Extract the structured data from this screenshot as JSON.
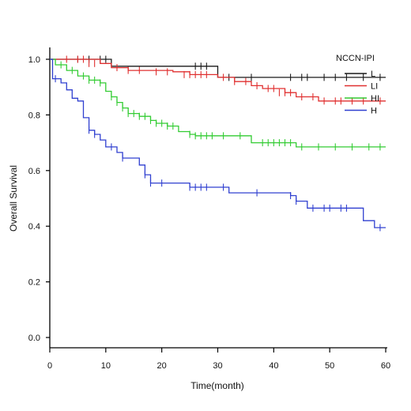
{
  "chart_data": {
    "type": "line",
    "subtype": "kaplan-meier step curves with censor marks",
    "xlabel": "Time(month)",
    "ylabel": "Overall Survival",
    "xlim": [
      0,
      60
    ],
    "ylim": [
      0,
      1.0
    ],
    "x_ticks": [
      "0",
      "10",
      "20",
      "30",
      "40",
      "50",
      "60"
    ],
    "y_ticks": [
      "0.0",
      "0.2",
      "0.4",
      "0.6",
      "0.8",
      "1.0"
    ],
    "grid": false,
    "legend": {
      "title": "NCCN-IPI",
      "position": "top-right",
      "entries": [
        "L",
        "LI",
        "HI",
        "H"
      ]
    },
    "series": [
      {
        "name": "L",
        "color": "#1a1a1a",
        "steps": [
          [
            0,
            1.0
          ],
          [
            11,
            0.975
          ],
          [
            30,
            0.935
          ],
          [
            60,
            0.935
          ]
        ],
        "censors": [
          [
            5,
            1.0
          ],
          [
            7,
            1.0
          ],
          [
            9,
            1.0
          ],
          [
            10,
            1.0
          ],
          [
            26,
            0.975
          ],
          [
            27,
            0.975
          ],
          [
            28,
            0.975
          ],
          [
            32,
            0.935
          ],
          [
            36,
            0.935
          ],
          [
            43,
            0.935
          ],
          [
            45,
            0.935
          ],
          [
            46,
            0.935
          ],
          [
            49,
            0.935
          ],
          [
            51,
            0.935
          ],
          [
            53,
            0.935
          ],
          [
            56,
            0.935
          ],
          [
            59,
            0.935
          ]
        ]
      },
      {
        "name": "LI",
        "color": "#e03030",
        "steps": [
          [
            0,
            1.0
          ],
          [
            9,
            0.985
          ],
          [
            11,
            0.97
          ],
          [
            14,
            0.96
          ],
          [
            22,
            0.955
          ],
          [
            25,
            0.945
          ],
          [
            30,
            0.935
          ],
          [
            33,
            0.92
          ],
          [
            36,
            0.905
          ],
          [
            38,
            0.895
          ],
          [
            42,
            0.88
          ],
          [
            44,
            0.865
          ],
          [
            48,
            0.85
          ],
          [
            60,
            0.85
          ]
        ],
        "censors": [
          [
            3,
            1.0
          ],
          [
            5,
            1.0
          ],
          [
            6,
            1.0
          ],
          [
            7,
            0.985
          ],
          [
            8,
            0.985
          ],
          [
            12,
            0.97
          ],
          [
            14,
            0.96
          ],
          [
            16,
            0.96
          ],
          [
            19,
            0.955
          ],
          [
            21,
            0.955
          ],
          [
            24,
            0.945
          ],
          [
            25,
            0.945
          ],
          [
            26,
            0.945
          ],
          [
            27,
            0.945
          ],
          [
            28,
            0.945
          ],
          [
            31,
            0.935
          ],
          [
            33,
            0.92
          ],
          [
            35,
            0.92
          ],
          [
            37,
            0.905
          ],
          [
            39,
            0.895
          ],
          [
            40,
            0.895
          ],
          [
            41,
            0.88
          ],
          [
            42,
            0.88
          ],
          [
            43,
            0.88
          ],
          [
            45,
            0.865
          ],
          [
            47,
            0.865
          ],
          [
            49,
            0.85
          ],
          [
            51,
            0.85
          ],
          [
            52,
            0.85
          ],
          [
            54,
            0.85
          ],
          [
            56,
            0.85
          ],
          [
            59,
            0.85
          ]
        ]
      },
      {
        "name": "HI",
        "color": "#33cc33",
        "steps": [
          [
            0,
            1.0
          ],
          [
            1,
            0.98
          ],
          [
            3,
            0.96
          ],
          [
            5,
            0.94
          ],
          [
            7,
            0.925
          ],
          [
            9,
            0.915
          ],
          [
            10,
            0.885
          ],
          [
            11,
            0.865
          ],
          [
            12,
            0.845
          ],
          [
            13,
            0.825
          ],
          [
            14,
            0.805
          ],
          [
            16,
            0.795
          ],
          [
            18,
            0.78
          ],
          [
            19,
            0.77
          ],
          [
            21,
            0.76
          ],
          [
            23,
            0.74
          ],
          [
            25,
            0.73
          ],
          [
            26,
            0.725
          ],
          [
            36,
            0.7
          ],
          [
            44,
            0.685
          ],
          [
            60,
            0.685
          ]
        ],
        "censors": [
          [
            2,
            0.98
          ],
          [
            4,
            0.96
          ],
          [
            6,
            0.94
          ],
          [
            7,
            0.925
          ],
          [
            8,
            0.925
          ],
          [
            9,
            0.915
          ],
          [
            11,
            0.865
          ],
          [
            12,
            0.845
          ],
          [
            13,
            0.825
          ],
          [
            14,
            0.805
          ],
          [
            15,
            0.805
          ],
          [
            16,
            0.795
          ],
          [
            17,
            0.795
          ],
          [
            18,
            0.78
          ],
          [
            19,
            0.77
          ],
          [
            20,
            0.77
          ],
          [
            21,
            0.76
          ],
          [
            22,
            0.76
          ],
          [
            25,
            0.73
          ],
          [
            26,
            0.725
          ],
          [
            27,
            0.725
          ],
          [
            28,
            0.725
          ],
          [
            29,
            0.725
          ],
          [
            31,
            0.725
          ],
          [
            34,
            0.725
          ],
          [
            38,
            0.7
          ],
          [
            39,
            0.7
          ],
          [
            40,
            0.7
          ],
          [
            41,
            0.7
          ],
          [
            42,
            0.7
          ],
          [
            43,
            0.7
          ],
          [
            45,
            0.685
          ],
          [
            48,
            0.685
          ],
          [
            51,
            0.685
          ],
          [
            54,
            0.685
          ],
          [
            57,
            0.685
          ],
          [
            59,
            0.685
          ]
        ]
      },
      {
        "name": "H",
        "color": "#3040d0",
        "steps": [
          [
            0,
            1.0
          ],
          [
            0.5,
            0.93
          ],
          [
            2,
            0.915
          ],
          [
            3,
            0.89
          ],
          [
            4,
            0.86
          ],
          [
            5,
            0.85
          ],
          [
            6,
            0.79
          ],
          [
            7,
            0.745
          ],
          [
            8,
            0.73
          ],
          [
            9,
            0.71
          ],
          [
            10,
            0.685
          ],
          [
            12,
            0.665
          ],
          [
            13,
            0.645
          ],
          [
            16,
            0.62
          ],
          [
            17,
            0.585
          ],
          [
            18,
            0.555
          ],
          [
            25,
            0.54
          ],
          [
            32,
            0.52
          ],
          [
            43,
            0.51
          ],
          [
            44,
            0.49
          ],
          [
            46,
            0.465
          ],
          [
            56,
            0.42
          ],
          [
            58,
            0.395
          ],
          [
            60,
            0.395
          ]
        ],
        "censors": [
          [
            1,
            0.93
          ],
          [
            7,
            0.745
          ],
          [
            8,
            0.73
          ],
          [
            11,
            0.685
          ],
          [
            13,
            0.645
          ],
          [
            17,
            0.585
          ],
          [
            18,
            0.555
          ],
          [
            20,
            0.555
          ],
          [
            25,
            0.54
          ],
          [
            26,
            0.54
          ],
          [
            27,
            0.54
          ],
          [
            28,
            0.54
          ],
          [
            31,
            0.54
          ],
          [
            37,
            0.52
          ],
          [
            43,
            0.51
          ],
          [
            44,
            0.49
          ],
          [
            47,
            0.465
          ],
          [
            49,
            0.465
          ],
          [
            50,
            0.465
          ],
          [
            52,
            0.465
          ],
          [
            53,
            0.465
          ],
          [
            59,
            0.395
          ]
        ]
      }
    ]
  }
}
